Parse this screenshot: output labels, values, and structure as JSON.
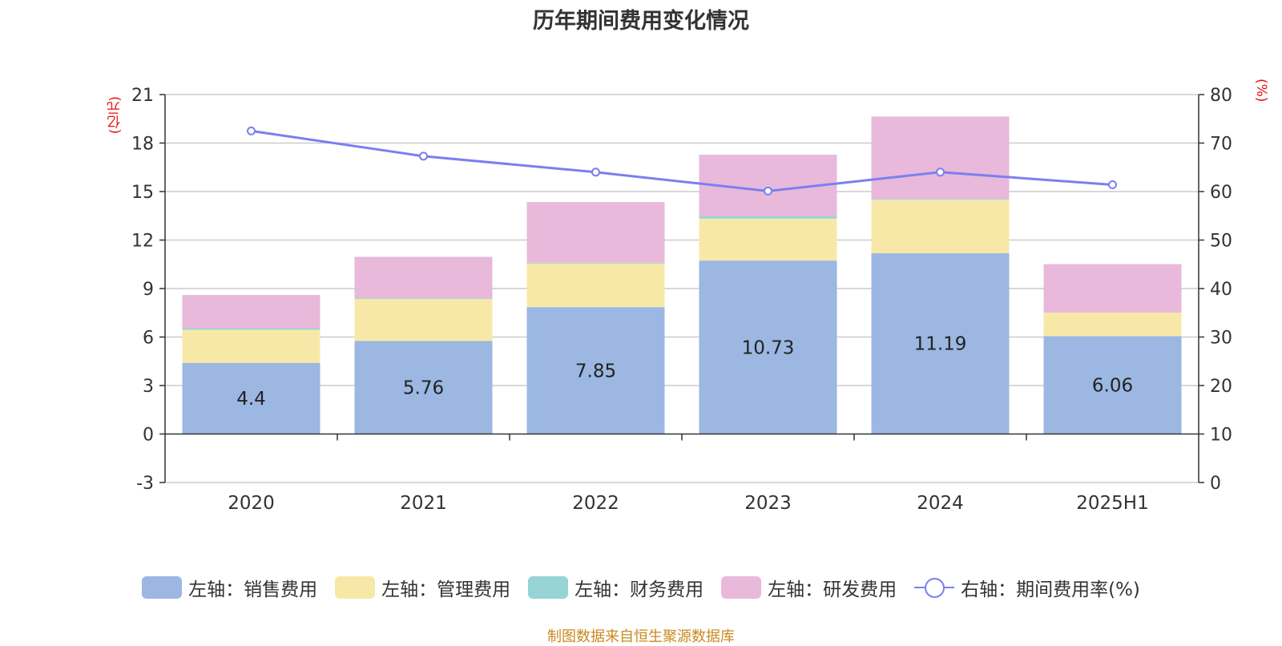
{
  "title": "历年期间费用变化情况",
  "left_unit": "(亿元)",
  "right_unit": "(%)",
  "source": "制图数据来自恒生聚源数据库",
  "colors": {
    "sales": "#9bb7e2",
    "admin": "#f8e8a8",
    "finance": "#96d4d6",
    "rd": "#e8b9da",
    "line": "#7b7ff0",
    "grid": "#cccccc",
    "axis": "#333333"
  },
  "chart_data": {
    "type": "bar",
    "stacked": true,
    "title": "历年期间费用变化情况",
    "categories": [
      "2020",
      "2021",
      "2022",
      "2023",
      "2024",
      "2025H1"
    ],
    "y_left": {
      "label": "(亿元)",
      "min": -3,
      "max": 21,
      "ticks": [
        21,
        18,
        15,
        12,
        9,
        6,
        3,
        0,
        -3
      ]
    },
    "y_right": {
      "label": "(%)",
      "min": 0,
      "max": 80,
      "ticks": [
        80,
        70,
        60,
        50,
        40,
        30,
        20,
        10,
        0
      ]
    },
    "series": [
      {
        "key": "sales",
        "name": "左轴：销售费用",
        "axis": "left",
        "values": [
          4.4,
          5.76,
          7.85,
          10.73,
          11.19,
          6.06
        ],
        "labels": [
          "4.4",
          "5.76",
          "7.85",
          "10.73",
          "11.19",
          "6.06"
        ]
      },
      {
        "key": "admin",
        "name": "左轴：管理费用",
        "axis": "left",
        "values": [
          2.05,
          2.6,
          2.7,
          2.6,
          3.3,
          1.45
        ]
      },
      {
        "key": "finance",
        "name": "左轴：财务费用",
        "axis": "left",
        "values": [
          0.1,
          0.05,
          0.05,
          0.15,
          0.05,
          0.0
        ]
      },
      {
        "key": "rd",
        "name": "左轴：研发费用",
        "axis": "left",
        "values": [
          2.05,
          2.55,
          3.75,
          3.8,
          5.1,
          3.0
        ]
      }
    ],
    "line": {
      "key": "line",
      "name": "右轴：期间费用率(%)",
      "axis": "right",
      "values": [
        72.5,
        67.3,
        64.0,
        60.1,
        64.0,
        61.4
      ]
    }
  }
}
